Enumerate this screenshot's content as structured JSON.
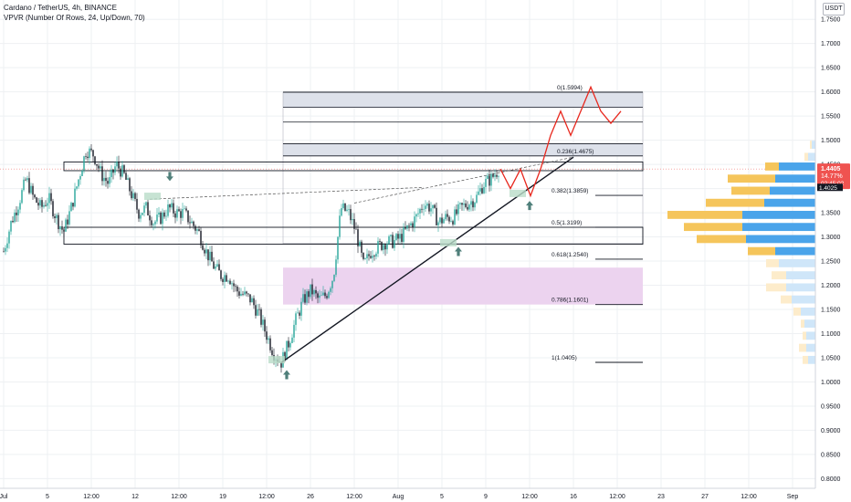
{
  "header": {
    "title": "Cardano / TetherUS, 4h, BINANCE",
    "indicator": "VPVR (Number Of Rows, 24, Up/Down, 70)",
    "unit_badge": "USDT"
  },
  "colors": {
    "up": "#26a69a",
    "down": "#131722",
    "vp_up": "#4aa4ea",
    "vp_down": "#f5c55b",
    "vp_up_faded": "#cfe6f9",
    "vp_down_faded": "#fdeccb",
    "fib_zone": "#dde1ea",
    "golden_zone": "#ecd3ef",
    "projection": "#e8271d",
    "price_badge": "#ef5350",
    "grid": "#eef0f3"
  },
  "chart_data": {
    "type": "candlestick",
    "symbol": "Cardano / TetherUS",
    "interval": "4h",
    "exchange": "BINANCE",
    "y_axis": {
      "ticks": [
        "0.8000",
        "0.8500",
        "0.9000",
        "0.9500",
        "1.0000",
        "1.0500",
        "1.1000",
        "1.1500",
        "1.2000",
        "1.2500",
        "1.3000",
        "1.3500",
        "1.4000",
        "1.4500",
        "1.5000",
        "1.5500",
        "1.6000",
        "1.6500",
        "1.7000",
        "1.7500"
      ],
      "range": [
        0.78,
        1.79
      ]
    },
    "x_axis": {
      "ticks": [
        {
          "i": 0,
          "label": "Jul"
        },
        {
          "i": 24,
          "label": "5"
        },
        {
          "i": 48,
          "label": "12:00"
        },
        {
          "i": 72,
          "label": "12"
        },
        {
          "i": 96,
          "label": "12:00"
        },
        {
          "i": 120,
          "label": "19"
        },
        {
          "i": 144,
          "label": "12:00"
        },
        {
          "i": 168,
          "label": "26"
        },
        {
          "i": 192,
          "label": "12:00"
        },
        {
          "i": 216,
          "label": "Aug"
        },
        {
          "i": 240,
          "label": "5"
        },
        {
          "i": 264,
          "label": "9"
        },
        {
          "i": 288,
          "label": "12:00"
        },
        {
          "i": 312,
          "label": "16"
        },
        {
          "i": 336,
          "label": "12:00"
        },
        {
          "i": 360,
          "label": "23"
        },
        {
          "i": 384,
          "label": "27"
        },
        {
          "i": 408,
          "label": "12:00"
        },
        {
          "i": 432,
          "label": "Sep"
        }
      ]
    },
    "price": {
      "last": "1.4405",
      "change": "14.77%",
      "countdown": "02:45:02",
      "level2": "1.4025"
    },
    "ohlc_path": [
      1.27,
      1.33,
      1.37,
      1.42,
      1.38,
      1.36,
      1.38,
      1.34,
      1.31,
      1.36,
      1.42,
      1.48,
      1.47,
      1.43,
      1.41,
      1.45,
      1.43,
      1.39,
      1.35,
      1.36,
      1.33,
      1.34,
      1.36,
      1.35,
      1.35,
      1.33,
      1.31,
      1.27,
      1.24,
      1.22,
      1.22,
      1.19,
      1.18,
      1.17,
      1.14,
      1.1,
      1.06,
      1.04,
      1.08,
      1.13,
      1.17,
      1.19,
      1.17,
      1.18,
      1.22,
      1.36,
      1.35,
      1.31,
      1.24,
      1.27,
      1.28,
      1.29,
      1.29,
      1.3,
      1.32,
      1.34,
      1.37,
      1.36,
      1.33,
      1.34,
      1.34,
      1.36,
      1.37,
      1.38,
      1.41,
      1.42,
      1.44
    ],
    "fibonacci": [
      {
        "label": "0(1.5994)",
        "value": 1.5994
      },
      {
        "label": "0.236(1.4675)",
        "value": 1.4675
      },
      {
        "label": "0.382(1.3859)",
        "value": 1.3859
      },
      {
        "label": "0.5(1.3199)",
        "value": 1.3199
      },
      {
        "label": "0.618(1.2540)",
        "value": 1.254
      },
      {
        "label": "0.786(1.1601)",
        "value": 1.1601
      },
      {
        "label": "1(1.0405)",
        "value": 1.0405
      }
    ],
    "projection_path": [
      1.4405,
      1.4,
      1.44,
      1.385,
      1.44,
      1.51,
      1.56,
      1.51,
      1.56,
      1.61,
      1.56,
      1.535,
      1.56
    ],
    "volume_profile": {
      "rows": [
        {
          "price": 1.49,
          "up": 4,
          "down": 2
        },
        {
          "price": 1.465,
          "up": 8,
          "down": 4
        },
        {
          "price": 1.445,
          "up": 40,
          "down": 15
        },
        {
          "price": 1.42,
          "up": 44,
          "down": 52
        },
        {
          "price": 1.395,
          "up": 50,
          "down": 42
        },
        {
          "price": 1.37,
          "up": 56,
          "down": 64
        },
        {
          "price": 1.345,
          "up": 80,
          "down": 82
        },
        {
          "price": 1.32,
          "up": 80,
          "down": 64
        },
        {
          "price": 1.295,
          "up": 76,
          "down": 54
        },
        {
          "price": 1.27,
          "up": 44,
          "down": 30
        },
        {
          "price": 1.245,
          "up": 40,
          "down": 14
        },
        {
          "price": 1.22,
          "up": 32,
          "down": 16
        },
        {
          "price": 1.195,
          "up": 32,
          "down": 22
        },
        {
          "price": 1.17,
          "up": 26,
          "down": 12
        },
        {
          "price": 1.145,
          "up": 16,
          "down": 8
        },
        {
          "price": 1.12,
          "up": 12,
          "down": 4
        },
        {
          "price": 1.095,
          "up": 10,
          "down": 4
        },
        {
          "price": 1.07,
          "up": 10,
          "down": 8
        },
        {
          "price": 1.045,
          "up": 8,
          "down": 6
        }
      ]
    }
  }
}
